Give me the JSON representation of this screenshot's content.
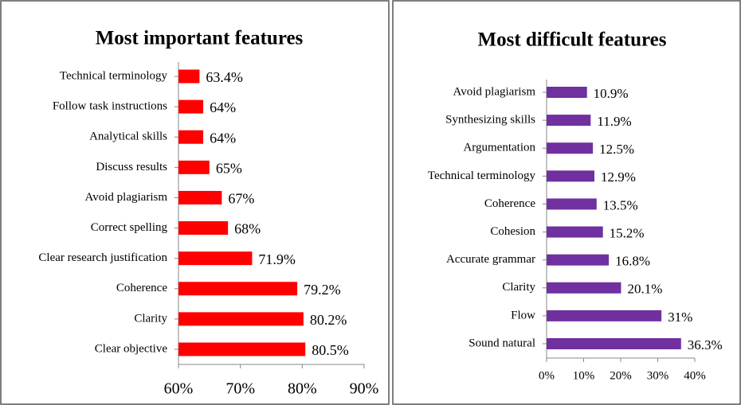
{
  "chart_data": [
    {
      "type": "bar",
      "orientation": "horizontal",
      "title": "Most important features",
      "categories": [
        "Technical terminology",
        "Follow task instructions",
        "Analytical skills",
        "Discuss results",
        "Avoid plagiarism",
        "Correct spelling",
        "Clear research justification",
        "Coherence",
        "Clarity",
        "Clear objective"
      ],
      "values": [
        63.4,
        64,
        64,
        65,
        67,
        68,
        71.9,
        79.2,
        80.2,
        80.5
      ],
      "value_labels": [
        "63.4%",
        "64%",
        "64%",
        "65%",
        "67%",
        "68%",
        "71.9%",
        "79.2%",
        "80.2%",
        "80.5%"
      ],
      "color": "#ff0000",
      "xlim": [
        60,
        90
      ],
      "xticks": [
        {
          "value": 60,
          "label": "60%"
        },
        {
          "value": 70,
          "label": "70%"
        },
        {
          "value": 80,
          "label": "80%"
        },
        {
          "value": 90,
          "label": "90%"
        }
      ]
    },
    {
      "type": "bar",
      "orientation": "horizontal",
      "title": "Most difficult features",
      "categories": [
        "Avoid plagiarism",
        "Synthesizing skills",
        "Argumentation",
        "Technical terminology",
        "Coherence",
        "Cohesion",
        "Accurate grammar",
        "Clarity",
        "Flow",
        "Sound natural"
      ],
      "values": [
        10.9,
        11.9,
        12.5,
        12.9,
        13.5,
        15.2,
        16.8,
        20.1,
        31,
        36.3
      ],
      "value_labels": [
        "10.9%",
        "11.9%",
        "12.5%",
        "12.9%",
        "13.5%",
        "15.2%",
        "16.8%",
        "20.1%",
        "31%",
        "36.3%"
      ],
      "color": "#7030a0",
      "xlim": [
        0,
        40
      ],
      "xticks": [
        {
          "value": 0,
          "label": "0%"
        },
        {
          "value": 10,
          "label": "10%"
        },
        {
          "value": 20,
          "label": "20%"
        },
        {
          "value": 30,
          "label": "30%"
        },
        {
          "value": 40,
          "label": "40%"
        }
      ]
    }
  ]
}
